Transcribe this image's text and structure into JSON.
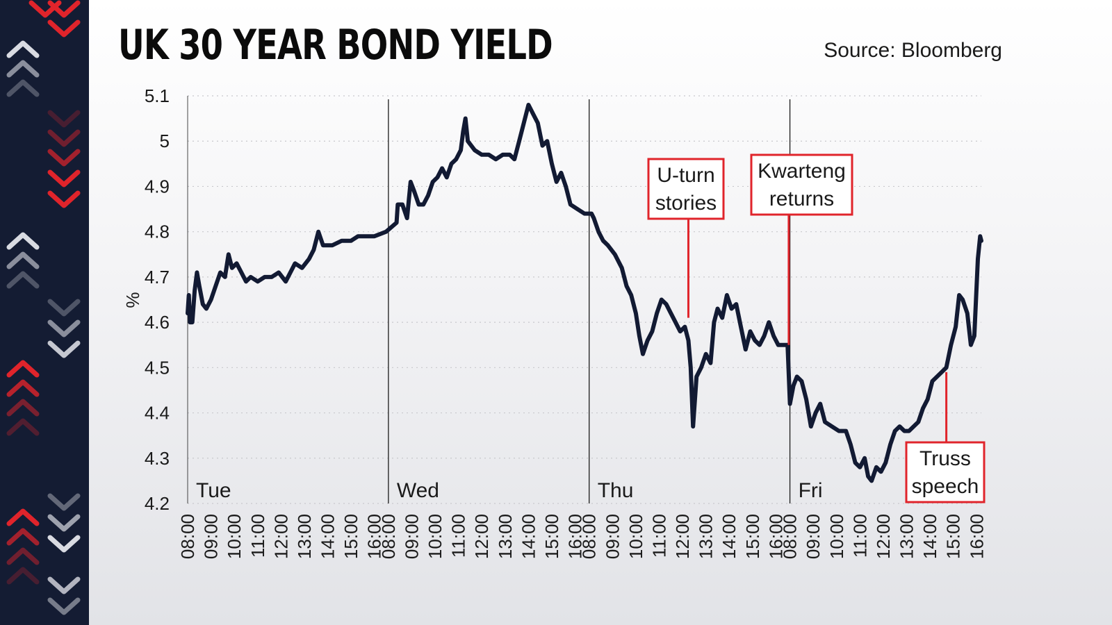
{
  "header": {
    "title": "UK 30 YEAR BOND YIELD",
    "source": "Source: Bloomberg"
  },
  "colors": {
    "sidebar": "#141c33",
    "line": "#121a33",
    "accent_red": "#e0242b",
    "chevron_light": "#d9dbe2"
  },
  "chart_data": {
    "type": "line",
    "title": "UK 30 YEAR BOND YIELD",
    "xlabel": "",
    "ylabel": "%",
    "ylim": [
      4.2,
      5.1
    ],
    "yticks": [
      "5.1",
      "5",
      "4.9",
      "4.8",
      "4.7",
      "4.6",
      "4.5",
      "4.4",
      "4.3",
      "4.2"
    ],
    "grid": true,
    "days": [
      {
        "name": "Tue",
        "ticks": [
          "08:00",
          "09:00",
          "10:00",
          "11:00",
          "12:00",
          "13:00",
          "14:00",
          "15:00",
          "16:00"
        ]
      },
      {
        "name": "Wed",
        "ticks": [
          "08:00",
          "09:00",
          "10:00",
          "11:00",
          "12:00",
          "13:00",
          "14:00",
          "15:00",
          "16:00"
        ]
      },
      {
        "name": "Thu",
        "ticks": [
          "08:00",
          "09:00",
          "10:00",
          "11:00",
          "12:00",
          "13:00",
          "14:00",
          "15:00",
          "16:00"
        ]
      },
      {
        "name": "Fri",
        "ticks": [
          "08:00",
          "09:00",
          "10:00",
          "11:00",
          "12:00",
          "13:00",
          "14:00",
          "15:00",
          "16:00"
        ]
      }
    ],
    "series": [
      {
        "values": [
          [
            0,
            4.62
          ],
          [
            0.05,
            4.66
          ],
          [
            0.1,
            4.6
          ],
          [
            0.2,
            4.6
          ],
          [
            0.3,
            4.67
          ],
          [
            0.4,
            4.71
          ],
          [
            0.5,
            4.68
          ],
          [
            0.65,
            4.64
          ],
          [
            0.8,
            4.63
          ],
          [
            1.0,
            4.65
          ],
          [
            1.2,
            4.68
          ],
          [
            1.4,
            4.71
          ],
          [
            1.6,
            4.7
          ],
          [
            1.75,
            4.75
          ],
          [
            1.9,
            4.72
          ],
          [
            2.1,
            4.73
          ],
          [
            2.3,
            4.71
          ],
          [
            2.5,
            4.69
          ],
          [
            2.7,
            4.7
          ],
          [
            3.0,
            4.69
          ],
          [
            3.3,
            4.7
          ],
          [
            3.6,
            4.7
          ],
          [
            3.9,
            4.71
          ],
          [
            4.2,
            4.69
          ],
          [
            4.4,
            4.71
          ],
          [
            4.6,
            4.73
          ],
          [
            4.9,
            4.72
          ],
          [
            5.2,
            4.74
          ],
          [
            5.4,
            4.76
          ],
          [
            5.6,
            4.8
          ],
          [
            5.8,
            4.77
          ],
          [
            6.2,
            4.77
          ],
          [
            6.6,
            4.78
          ],
          [
            7.0,
            4.78
          ],
          [
            7.3,
            4.79
          ],
          [
            7.6,
            4.79
          ],
          [
            8.0,
            4.79
          ],
          [
            8.5,
            4.8
          ],
          [
            8.95,
            4.82
          ],
          [
            9.0,
            4.86
          ],
          [
            9.2,
            4.86
          ],
          [
            9.4,
            4.83
          ],
          [
            9.55,
            4.91
          ],
          [
            9.7,
            4.89
          ],
          [
            9.9,
            4.86
          ],
          [
            10.1,
            4.86
          ],
          [
            10.3,
            4.88
          ],
          [
            10.5,
            4.91
          ],
          [
            10.7,
            4.92
          ],
          [
            10.9,
            4.94
          ],
          [
            11.1,
            4.92
          ],
          [
            11.3,
            4.95
          ],
          [
            11.5,
            4.96
          ],
          [
            11.7,
            4.98
          ],
          [
            11.8,
            5.02
          ],
          [
            11.9,
            5.05
          ],
          [
            12.0,
            5.0
          ],
          [
            12.3,
            4.98
          ],
          [
            12.6,
            4.97
          ],
          [
            12.9,
            4.97
          ],
          [
            13.2,
            4.96
          ],
          [
            13.5,
            4.97
          ],
          [
            13.8,
            4.97
          ],
          [
            14.0,
            4.96
          ],
          [
            14.2,
            5.0
          ],
          [
            14.4,
            5.04
          ],
          [
            14.6,
            5.08
          ],
          [
            14.8,
            5.06
          ],
          [
            15.0,
            5.04
          ],
          [
            15.2,
            4.99
          ],
          [
            15.4,
            5.0
          ],
          [
            15.6,
            4.95
          ],
          [
            15.8,
            4.91
          ],
          [
            16.0,
            4.93
          ],
          [
            16.2,
            4.9
          ],
          [
            16.4,
            4.86
          ],
          [
            16.7,
            4.85
          ],
          [
            17.0,
            4.84
          ],
          [
            17.3,
            4.84
          ],
          [
            17.4,
            4.83
          ],
          [
            17.6,
            4.8
          ],
          [
            17.8,
            4.78
          ],
          [
            18.0,
            4.77
          ],
          [
            18.3,
            4.75
          ],
          [
            18.6,
            4.72
          ],
          [
            18.8,
            4.68
          ],
          [
            19.0,
            4.66
          ],
          [
            19.2,
            4.62
          ],
          [
            19.35,
            4.57
          ],
          [
            19.5,
            4.53
          ],
          [
            19.7,
            4.56
          ],
          [
            19.9,
            4.58
          ],
          [
            20.1,
            4.62
          ],
          [
            20.3,
            4.65
          ],
          [
            20.5,
            4.64
          ],
          [
            20.7,
            4.62
          ],
          [
            20.9,
            4.6
          ],
          [
            21.1,
            4.58
          ],
          [
            21.3,
            4.59
          ],
          [
            21.45,
            4.56
          ],
          [
            21.55,
            4.5
          ],
          [
            21.65,
            4.37
          ],
          [
            21.8,
            4.48
          ],
          [
            22.0,
            4.5
          ],
          [
            22.2,
            4.53
          ],
          [
            22.4,
            4.51
          ],
          [
            22.55,
            4.6
          ],
          [
            22.7,
            4.63
          ],
          [
            22.9,
            4.61
          ],
          [
            23.1,
            4.66
          ],
          [
            23.3,
            4.63
          ],
          [
            23.5,
            4.64
          ],
          [
            23.7,
            4.59
          ],
          [
            23.9,
            4.54
          ],
          [
            24.1,
            4.58
          ],
          [
            24.3,
            4.56
          ],
          [
            24.5,
            4.55
          ],
          [
            24.7,
            4.57
          ],
          [
            24.9,
            4.6
          ],
          [
            25.1,
            4.57
          ],
          [
            25.3,
            4.55
          ],
          [
            25.5,
            4.55
          ],
          [
            25.7,
            4.55
          ],
          [
            25.8,
            4.42
          ],
          [
            25.95,
            4.46
          ],
          [
            26.1,
            4.48
          ],
          [
            26.3,
            4.47
          ],
          [
            26.5,
            4.43
          ],
          [
            26.7,
            4.37
          ],
          [
            26.9,
            4.4
          ],
          [
            27.1,
            4.42
          ],
          [
            27.3,
            4.38
          ],
          [
            27.6,
            4.37
          ],
          [
            27.9,
            4.36
          ],
          [
            28.2,
            4.36
          ],
          [
            28.4,
            4.33
          ],
          [
            28.6,
            4.29
          ],
          [
            28.8,
            4.28
          ],
          [
            29.0,
            4.3
          ],
          [
            29.15,
            4.26
          ],
          [
            29.3,
            4.25
          ],
          [
            29.5,
            4.28
          ],
          [
            29.7,
            4.27
          ],
          [
            29.9,
            4.29
          ],
          [
            30.1,
            4.33
          ],
          [
            30.3,
            4.36
          ],
          [
            30.5,
            4.37
          ],
          [
            30.7,
            4.36
          ],
          [
            30.9,
            4.36
          ],
          [
            31.1,
            4.37
          ],
          [
            31.3,
            4.38
          ],
          [
            31.5,
            4.41
          ],
          [
            31.7,
            4.43
          ],
          [
            31.9,
            4.47
          ],
          [
            32.1,
            4.48
          ],
          [
            32.3,
            4.49
          ],
          [
            32.5,
            4.5
          ],
          [
            32.7,
            4.55
          ],
          [
            32.9,
            4.59
          ],
          [
            33.05,
            4.66
          ],
          [
            33.2,
            4.65
          ],
          [
            33.4,
            4.62
          ],
          [
            33.55,
            4.55
          ],
          [
            33.7,
            4.57
          ],
          [
            33.85,
            4.74
          ],
          [
            33.95,
            4.79
          ],
          [
            34.0,
            4.78
          ]
        ]
      }
    ],
    "annotations": [
      {
        "label": [
          "U-turn",
          "stories"
        ],
        "x": 21.45,
        "y": 4.61
      },
      {
        "label": [
          "Kwarteng",
          "returns"
        ],
        "x": 25.75,
        "y": 4.55
      },
      {
        "label": [
          "Truss",
          "speech"
        ],
        "x": 32.5,
        "y": 4.49
      }
    ]
  }
}
